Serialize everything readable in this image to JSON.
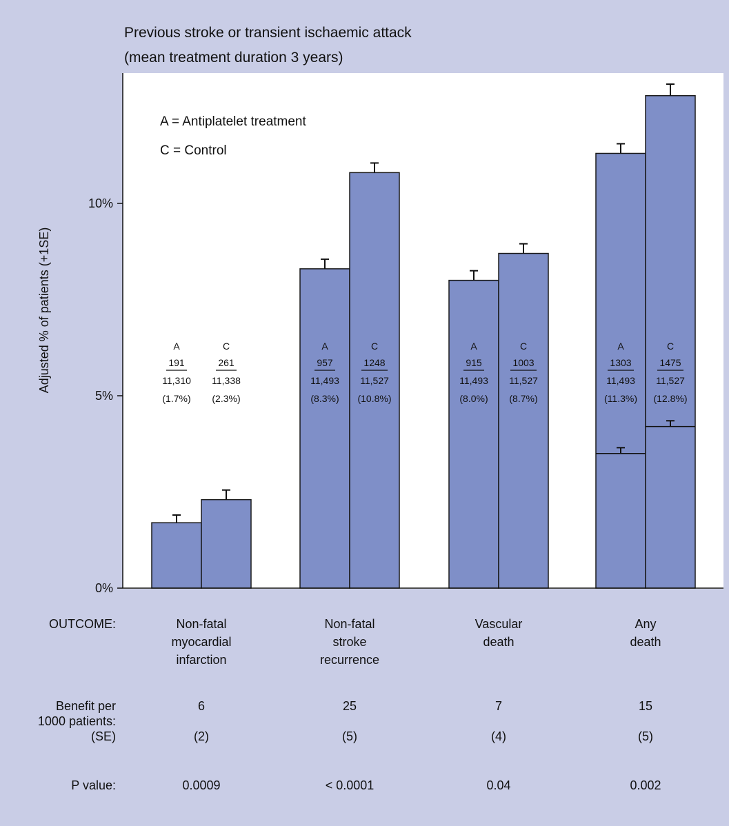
{
  "title": {
    "line1": "Previous stroke or transient ischaemic attack",
    "line2": "(mean treatment duration 3 years)"
  },
  "legend": {
    "antiplatelet": "A = Antiplatelet treatment",
    "control": "C = Control"
  },
  "colors": {
    "background": "#c9cde6",
    "plot_area": "#ffffff",
    "bar_fill": "#7f8fc8",
    "bar_stroke": "#1a1a1a"
  },
  "chart_data": {
    "type": "bar",
    "ylabel": "Adjusted % of patients (+1SE)",
    "ylim": [
      0,
      13.5
    ],
    "yticks": [
      {
        "value": 0,
        "label": "0%"
      },
      {
        "value": 5,
        "label": "5%"
      },
      {
        "value": 10,
        "label": "10%"
      }
    ],
    "grid": false,
    "legend_placement": "top-left",
    "categories": [
      "Non-fatal myocardial infarction",
      "Non-fatal stroke recurrence",
      "Vascular death",
      "Any death"
    ],
    "series": [
      {
        "name": "A",
        "values": [
          1.7,
          8.3,
          8.0,
          11.3
        ],
        "se": [
          0.2,
          0.25,
          0.25,
          0.25
        ]
      },
      {
        "name": "C",
        "values": [
          2.3,
          10.8,
          8.7,
          12.8
        ],
        "se": [
          0.25,
          0.25,
          0.25,
          0.3
        ]
      }
    ],
    "inner_segments": {
      "category": "Any death",
      "A": {
        "value": 3.5,
        "se": 0.15
      },
      "C": {
        "value": 4.2,
        "se": 0.15
      }
    },
    "annotations": [
      {
        "A": {
          "letter": "A",
          "events": "191",
          "patients": "11,310",
          "pct": "(1.7%)"
        },
        "C": {
          "letter": "C",
          "events": "261",
          "patients": "11,338",
          "pct": "(2.3%)"
        }
      },
      {
        "A": {
          "letter": "A",
          "events": "957",
          "patients": "11,493",
          "pct": "(8.3%)"
        },
        "C": {
          "letter": "C",
          "events": "1248",
          "patients": "11,527",
          "pct": "(10.8%)"
        }
      },
      {
        "A": {
          "letter": "A",
          "events": "915",
          "patients": "11,493",
          "pct": "(8.0%)"
        },
        "C": {
          "letter": "C",
          "events": "1003",
          "patients": "11,527",
          "pct": "(8.7%)"
        }
      },
      {
        "A": {
          "letter": "A",
          "events": "1303",
          "patients": "11,493",
          "pct": "(11.3%)"
        },
        "C": {
          "letter": "C",
          "events": "1475",
          "patients": "11,527",
          "pct": "(12.8%)"
        }
      }
    ]
  },
  "outcome": {
    "label": "OUTCOME:",
    "names": [
      [
        "Non-fatal",
        "myocardial",
        "infarction"
      ],
      [
        "Non-fatal",
        "stroke",
        "recurrence"
      ],
      [
        "Vascular",
        "death"
      ],
      [
        "Any",
        "death"
      ]
    ]
  },
  "benefit": {
    "label_lines": [
      "Benefit per",
      "1000 patients:",
      "(SE)"
    ],
    "values": [
      "6",
      "25",
      "7",
      "15"
    ],
    "se": [
      "(2)",
      "(5)",
      "(4)",
      "(5)"
    ]
  },
  "pvalue": {
    "label": "P value:",
    "values": [
      "0.0009",
      "< 0.0001",
      "0.04",
      "0.002"
    ]
  }
}
